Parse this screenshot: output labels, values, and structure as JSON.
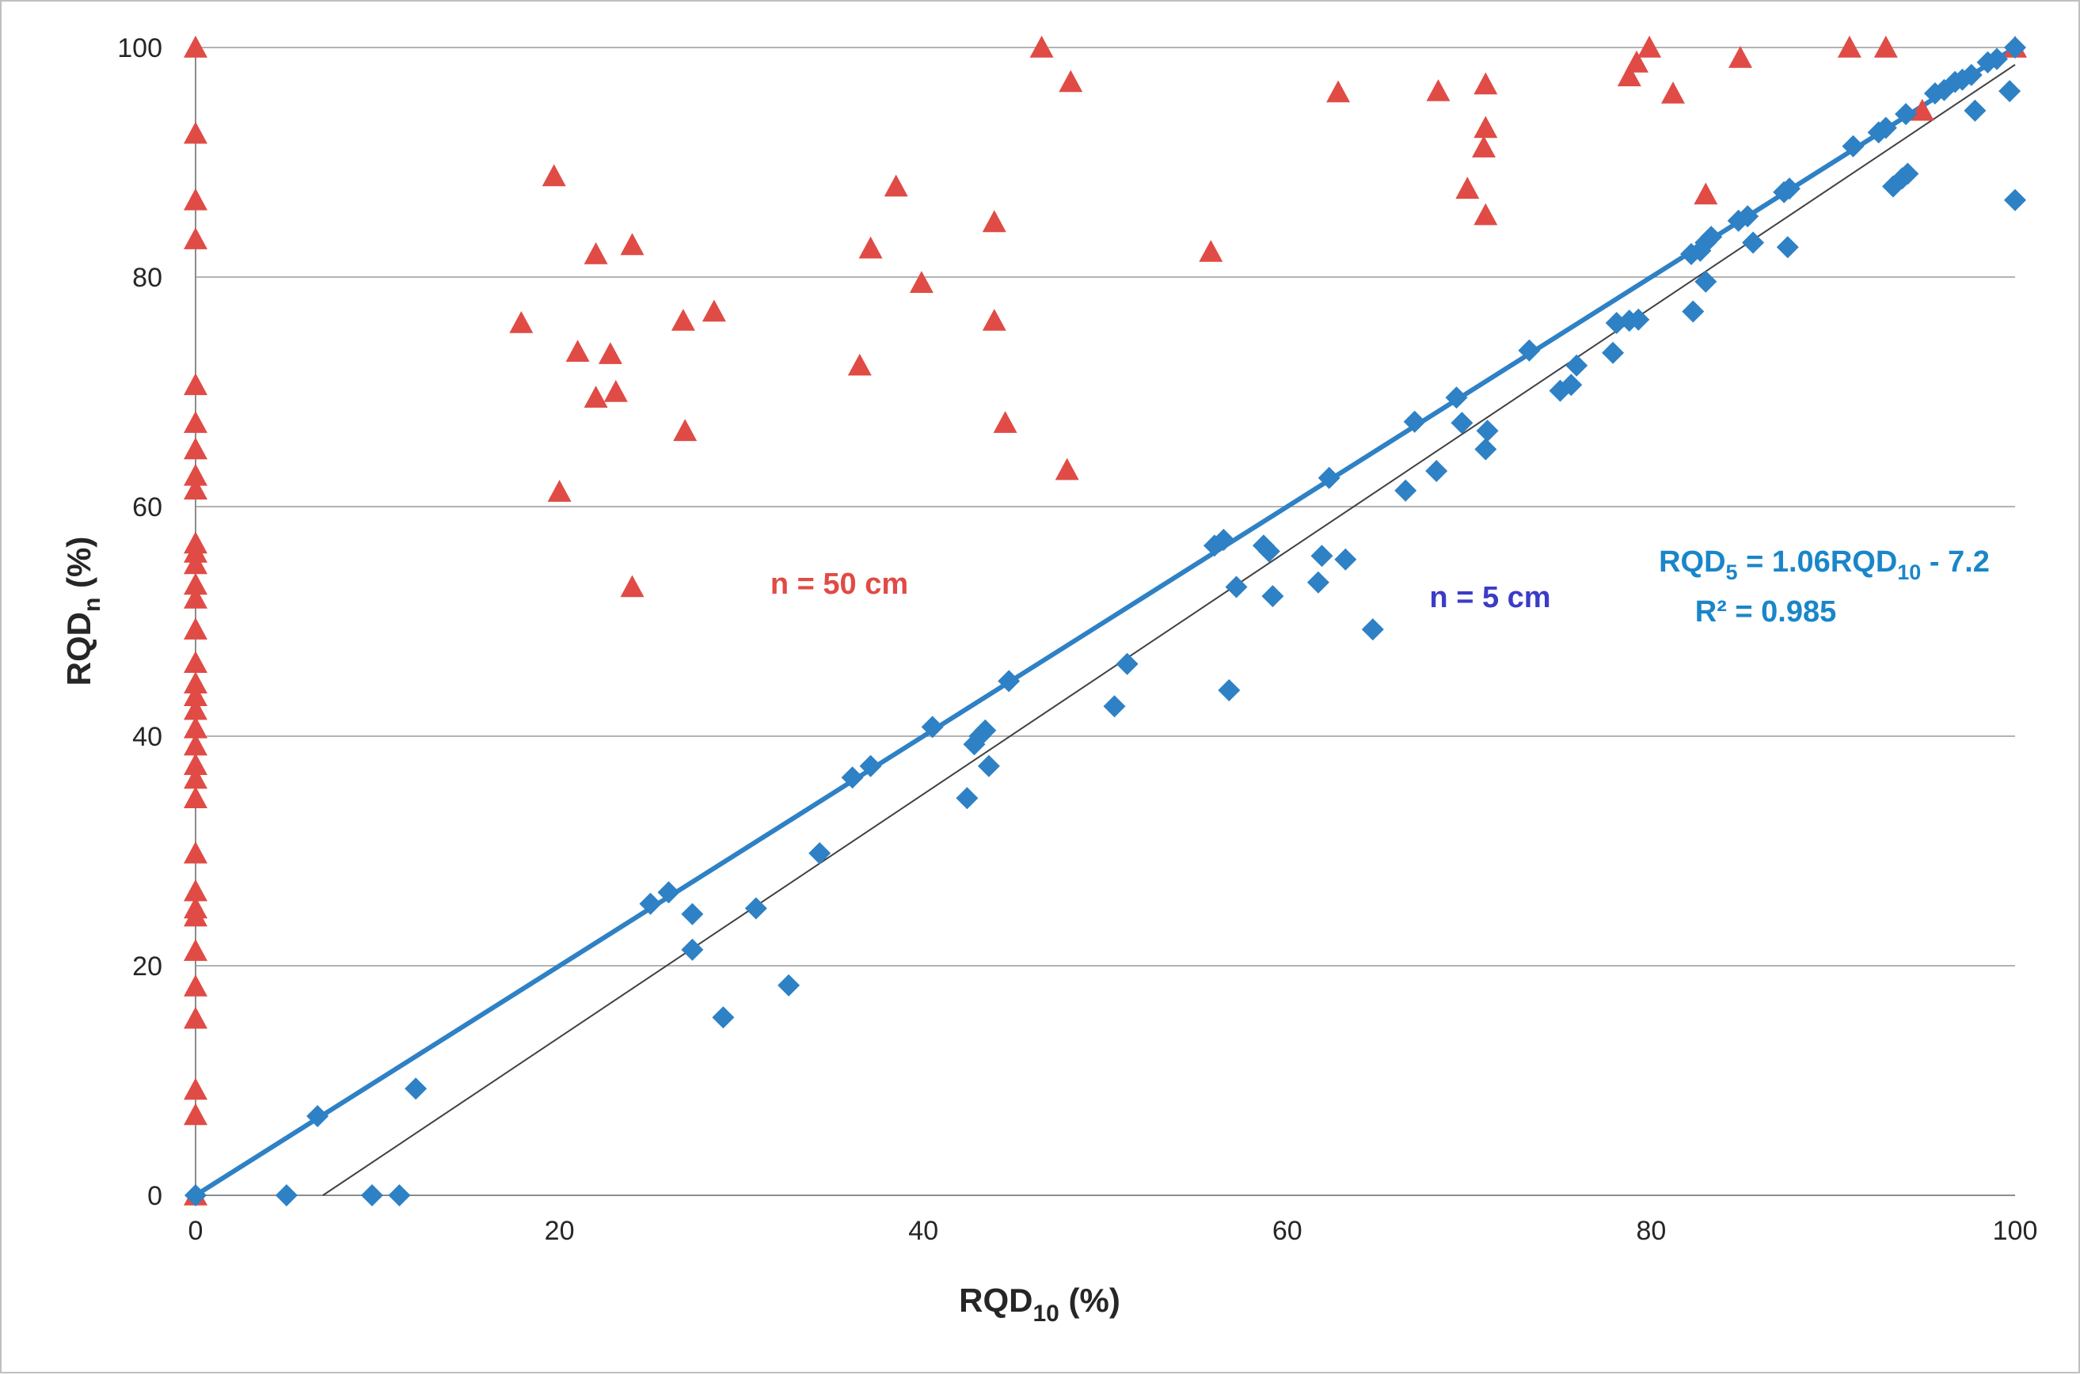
{
  "chart_data": {
    "type": "scatter",
    "title": "",
    "xlabel": {
      "main": "RQD",
      "sub": "10",
      "suffix": " (%)"
    },
    "ylabel": {
      "main": "RQD",
      "sub": "n",
      "suffix": " (%)"
    },
    "xlim": [
      0,
      100
    ],
    "ylim": [
      0,
      100
    ],
    "xticks": [
      0,
      20,
      40,
      60,
      80,
      100
    ],
    "yticks": [
      0,
      20,
      40,
      60,
      80,
      100
    ],
    "grid": "horizontal",
    "colors": {
      "n50": "#e04b45",
      "n5": "#2e81c5",
      "fit_line": "#2e81c5",
      "reference_line": "#404040",
      "annotation_n5": "#3b3bc8",
      "equation": "#1a86c9",
      "grid": "#b3b3b3",
      "axis": "#8c8c8c"
    },
    "series": [
      {
        "name": "n = 50 cm",
        "marker": "triangle",
        "points": [
          [
            0,
            100
          ],
          [
            0,
            92.5
          ],
          [
            0,
            86.7
          ],
          [
            0,
            83.3
          ],
          [
            0,
            70.6
          ],
          [
            0,
            67.3
          ],
          [
            0,
            65
          ],
          [
            0,
            62.7
          ],
          [
            0,
            61.5
          ],
          [
            0,
            56.8
          ],
          [
            0,
            56
          ],
          [
            0,
            55
          ],
          [
            0,
            53.2
          ],
          [
            0,
            52
          ],
          [
            0,
            49.3
          ],
          [
            0,
            46.4
          ],
          [
            0,
            44.6
          ],
          [
            0,
            43.5
          ],
          [
            0,
            42.3
          ],
          [
            0,
            40.7
          ],
          [
            0,
            39.2
          ],
          [
            0,
            37.5
          ],
          [
            0,
            36.3
          ],
          [
            0,
            34.6
          ],
          [
            0,
            29.8
          ],
          [
            0,
            26.5
          ],
          [
            0,
            25
          ],
          [
            0,
            24.3
          ],
          [
            0,
            21.3
          ],
          [
            0,
            18.2
          ],
          [
            0,
            15.4
          ],
          [
            0,
            9.2
          ],
          [
            0,
            7
          ],
          [
            0,
            0
          ],
          [
            17.9,
            76
          ],
          [
            19.7,
            88.8
          ],
          [
            20,
            61.3
          ],
          [
            21,
            73.5
          ],
          [
            22,
            82
          ],
          [
            22,
            69.5
          ],
          [
            22.8,
            73.3
          ],
          [
            23.1,
            70
          ],
          [
            24,
            82.8
          ],
          [
            24,
            53
          ],
          [
            26.8,
            76.2
          ],
          [
            26.9,
            66.6
          ],
          [
            28.5,
            77
          ],
          [
            36.5,
            72.3
          ],
          [
            37.1,
            82.5
          ],
          [
            38.5,
            87.9
          ],
          [
            39.9,
            79.5
          ],
          [
            43.9,
            84.8
          ],
          [
            43.9,
            76.2
          ],
          [
            44.5,
            67.3
          ],
          [
            46.5,
            100
          ],
          [
            47.9,
            63.2
          ],
          [
            48.1,
            97
          ],
          [
            55.8,
            82.2
          ],
          [
            62.8,
            96.1
          ],
          [
            68.3,
            96.2
          ],
          [
            69.9,
            87.7
          ],
          [
            70.8,
            91.3
          ],
          [
            70.9,
            85.4
          ],
          [
            70.9,
            93
          ],
          [
            70.9,
            96.8
          ],
          [
            78.8,
            97.5
          ],
          [
            79.2,
            98.7
          ],
          [
            79.9,
            100
          ],
          [
            81.2,
            96
          ],
          [
            84.9,
            99.1
          ],
          [
            83,
            87.2
          ],
          [
            90.9,
            100
          ],
          [
            92.9,
            100
          ],
          [
            94.9,
            94.5
          ],
          [
            100,
            100
          ]
        ]
      },
      {
        "name": "n = 5 cm",
        "marker": "diamond",
        "points": [
          [
            0,
            0
          ],
          [
            5,
            0
          ],
          [
            9.7,
            0
          ],
          [
            11.2,
            0
          ],
          [
            6.7,
            6.9
          ],
          [
            12.1,
            9.3
          ],
          [
            25,
            25.4
          ],
          [
            26,
            26.4
          ],
          [
            27.3,
            24.5
          ],
          [
            27.3,
            21.4
          ],
          [
            29,
            15.5
          ],
          [
            30.8,
            25
          ],
          [
            32.6,
            18.3
          ],
          [
            34.3,
            29.8
          ],
          [
            36.1,
            36.4
          ],
          [
            37.1,
            37.4
          ],
          [
            40.5,
            40.8
          ],
          [
            42.4,
            34.6
          ],
          [
            42.8,
            39.3
          ],
          [
            43.1,
            40
          ],
          [
            43.4,
            40.5
          ],
          [
            43.6,
            37.4
          ],
          [
            44.7,
            44.8
          ],
          [
            50.5,
            42.6
          ],
          [
            51.2,
            46.3
          ],
          [
            56,
            56.6
          ],
          [
            56.5,
            57.1
          ],
          [
            56.8,
            44
          ],
          [
            57.2,
            53
          ],
          [
            58.7,
            56.6
          ],
          [
            59,
            56.1
          ],
          [
            59.2,
            52.2
          ],
          [
            61.7,
            53.4
          ],
          [
            61.9,
            55.7
          ],
          [
            62.3,
            62.5
          ],
          [
            63.2,
            55.4
          ],
          [
            64.7,
            49.3
          ],
          [
            66.5,
            61.4
          ],
          [
            67,
            67.4
          ],
          [
            68.2,
            63.1
          ],
          [
            69.3,
            69.5
          ],
          [
            69.6,
            67.3
          ],
          [
            70.9,
            65
          ],
          [
            71,
            66.6
          ],
          [
            73.3,
            73.6
          ],
          [
            75,
            70.1
          ],
          [
            75.6,
            70.6
          ],
          [
            75.9,
            72.3
          ],
          [
            77.9,
            73.4
          ],
          [
            78.1,
            76
          ],
          [
            78.8,
            76.2
          ],
          [
            79.3,
            76.3
          ],
          [
            82.2,
            82
          ],
          [
            82.3,
            77
          ],
          [
            82.7,
            82.3
          ],
          [
            83,
            83
          ],
          [
            83,
            79.6
          ],
          [
            83.3,
            83.5
          ],
          [
            84.8,
            84.9
          ],
          [
            85.3,
            85.3
          ],
          [
            85.6,
            83
          ],
          [
            87.3,
            87.4
          ],
          [
            87.5,
            82.6
          ],
          [
            87.6,
            87.7
          ],
          [
            91.1,
            91.4
          ],
          [
            92.5,
            92.6
          ],
          [
            92.9,
            93
          ],
          [
            93.3,
            87.9
          ],
          [
            93.8,
            88.6
          ],
          [
            94,
            94.2
          ],
          [
            94.1,
            89
          ],
          [
            95.6,
            96
          ],
          [
            96.1,
            96.3
          ],
          [
            96.7,
            97
          ],
          [
            97.1,
            97.2
          ],
          [
            97.6,
            97.6
          ],
          [
            97.8,
            94.5
          ],
          [
            98.5,
            98.7
          ],
          [
            99,
            99
          ],
          [
            99.7,
            96.2
          ],
          [
            100,
            100
          ],
          [
            100,
            86.7
          ]
        ]
      }
    ],
    "fit_line": {
      "slope": 1.0,
      "intercept": 0,
      "x_range": [
        0,
        100
      ]
    },
    "reference_line": {
      "points": [
        [
          7,
          0
        ],
        [
          100,
          98.5
        ]
      ]
    },
    "annotations": {
      "n50_label": "n = 50 cm",
      "n5_label": "n = 5 cm",
      "equation_parts": [
        "RQD",
        "5",
        " = 1.06RQD",
        "10",
        "  - 7.2"
      ],
      "r_squared": "R² = 0.985"
    }
  }
}
